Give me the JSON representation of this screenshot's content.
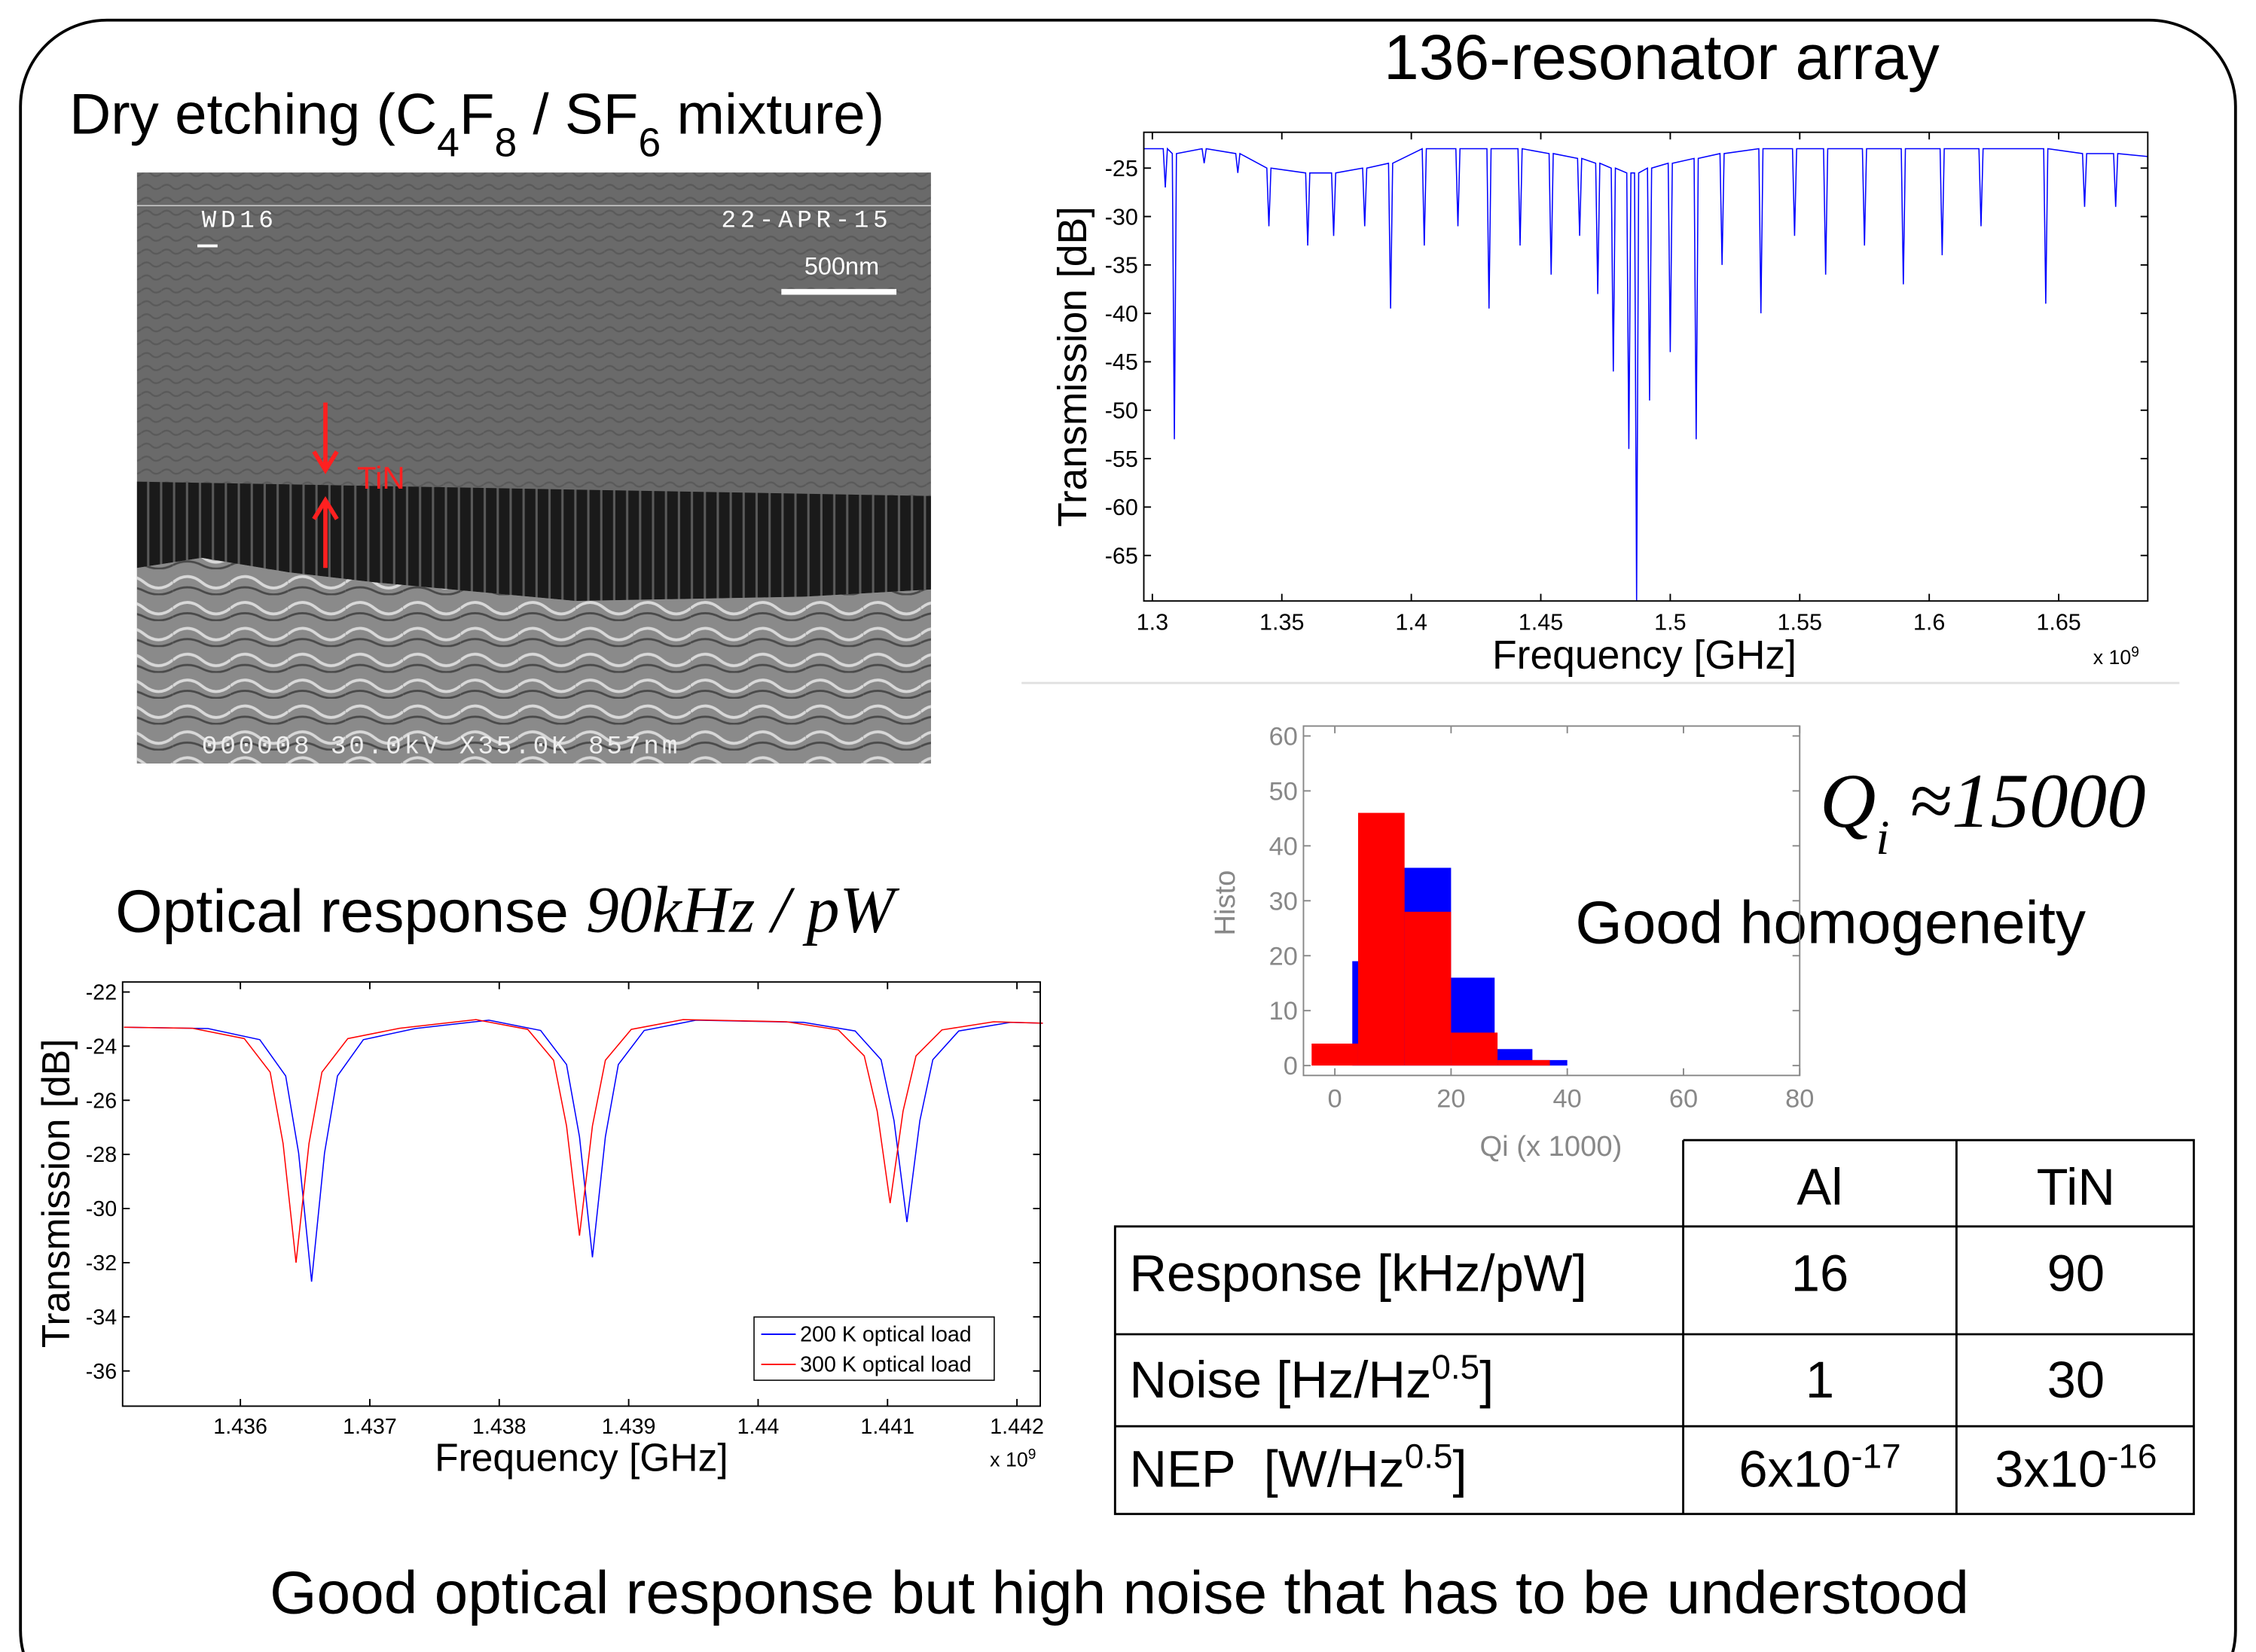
{
  "slide": {
    "sem_title": [
      "Dry etching (C",
      "4",
      "F",
      "8",
      " / SF",
      "6",
      " mixture)"
    ],
    "sem_labels": {
      "wd": "WD16",
      "date": "22-APR-15",
      "scale": "500nm",
      "layer": "TiN",
      "footer": "000008 30.0kV X35.0K 857nm"
    },
    "optical_title": "Optical response",
    "optical_formula": "90kHz / pW",
    "qi_formula": [
      "Q",
      "i",
      " ≈15000"
    ],
    "homogeneity": "Good homogeneity",
    "conclusion": "Good optical response but high noise that has to be understood"
  },
  "chart_data": [
    {
      "type": "line",
      "title": "136-resonator array",
      "x_label": "Frequency [GHz]",
      "y_label": "Transmission [dB]",
      "x_multiplier": [
        "x 10",
        "9"
      ],
      "x": [
        1.2967,
        1.3042,
        1.305,
        1.3058,
        1.3077,
        1.3085,
        1.3093,
        1.3192,
        1.32,
        1.3208,
        1.3322,
        1.333,
        1.3338,
        1.3442,
        1.345,
        1.3458,
        1.3592,
        1.36,
        1.3608,
        1.3692,
        1.37,
        1.3708,
        1.3812,
        1.382,
        1.3828,
        1.3912,
        1.392,
        1.3928,
        1.4042,
        1.405,
        1.4058,
        1.4172,
        1.418,
        1.4188,
        1.4292,
        1.43,
        1.4308,
        1.4412,
        1.442,
        1.4428,
        1.4532,
        1.454,
        1.4548,
        1.4642,
        1.465,
        1.4658,
        1.4712,
        1.472,
        1.4728,
        1.4772,
        1.478,
        1.4788,
        1.4832,
        1.484,
        1.4848,
        1.4862,
        1.487,
        1.4878,
        1.4912,
        1.492,
        1.4928,
        1.4992,
        1.5,
        1.5008,
        1.5092,
        1.51,
        1.5108,
        1.5192,
        1.52,
        1.5208,
        1.5342,
        1.535,
        1.5358,
        1.5472,
        1.548,
        1.5488,
        1.5592,
        1.56,
        1.5608,
        1.5742,
        1.575,
        1.5758,
        1.5892,
        1.59,
        1.5908,
        1.6042,
        1.605,
        1.6058,
        1.6192,
        1.62,
        1.6208,
        1.6442,
        1.645,
        1.6458,
        1.6592,
        1.66,
        1.6608,
        1.6712,
        1.672,
        1.6728,
        1.6844
      ],
      "series": [
        {
          "color": "#0000ff",
          "values": [
            -23,
            -23,
            -27,
            -23,
            -23.5,
            -53,
            -23.5,
            -23,
            -24.5,
            -23,
            -23.5,
            -25.5,
            -23.5,
            -25,
            -31,
            -25,
            -25.5,
            -33,
            -25.5,
            -25.5,
            -32,
            -25.5,
            -25,
            -31,
            -25,
            -24.5,
            -39.5,
            -24.5,
            -23,
            -33,
            -23,
            -23,
            -31,
            -23,
            -23,
            -39.5,
            -23,
            -23,
            -33,
            -23,
            -23.5,
            -36,
            -23.5,
            -24,
            -32,
            -24,
            -24.5,
            -38,
            -24.5,
            -25,
            -46,
            -25,
            -25.5,
            -54,
            -25.5,
            -25.5,
            -69.7,
            -25.5,
            -25,
            -49,
            -25,
            -24.5,
            -44,
            -24.5,
            -24,
            -53,
            -24,
            -23.5,
            -35,
            -23.5,
            -23,
            -40,
            -23,
            -23,
            -32,
            -23,
            -23,
            -36,
            -23,
            -23,
            -33,
            -23,
            -23,
            -37,
            -23,
            -23,
            -34,
            -23,
            -23,
            -31,
            -23,
            -23,
            -39,
            -23,
            -23.5,
            -29,
            -23.5,
            -23.5,
            -29,
            -23.5,
            -23.8
          ]
        }
      ],
      "xlim": [
        1.2967,
        1.6844
      ],
      "xticks": [
        1.3,
        1.35,
        1.4,
        1.45,
        1.5,
        1.55,
        1.6,
        1.65
      ],
      "ylim": [
        -69.7,
        -21.3
      ],
      "yticks": [
        -25,
        -30,
        -35,
        -40,
        -45,
        -50,
        -55,
        -60,
        -65
      ]
    },
    {
      "type": "line",
      "x_label": "Frequency [GHz]",
      "y_label": "Transmission [dB]",
      "x_multiplier": [
        "x 10",
        "9"
      ],
      "legend": "lower right",
      "series": [
        {
          "name": "200 K optical load",
          "color": "#0000ff",
          "x": [
            1.4351,
            1.43575,
            1.43615,
            1.43635,
            1.43645,
            1.43655,
            1.43665,
            1.43675,
            1.43695,
            1.43735,
            1.43792,
            1.43832,
            1.43852,
            1.43862,
            1.43872,
            1.43882,
            1.43892,
            1.43912,
            1.43952,
            1.44035,
            1.44075,
            1.44095,
            1.44105,
            1.44115,
            1.44125,
            1.44135,
            1.44155,
            1.44195,
            1.4422
          ],
          "values": [
            -23.3,
            -23.35,
            -23.76,
            -25.1,
            -27.95,
            -32.7,
            -27.95,
            -25.1,
            -23.76,
            -23.35,
            -23.04,
            -23.42,
            -24.68,
            -27.35,
            -31.8,
            -27.35,
            -24.68,
            -23.42,
            -23.04,
            -23.12,
            -23.44,
            -24.5,
            -26.75,
            -30.5,
            -26.75,
            -24.5,
            -23.44,
            -23.12,
            -23.15
          ]
        },
        {
          "name": "300 K optical load",
          "color": "#ff0000",
          "x": [
            1.4351,
            1.43563,
            1.43603,
            1.43623,
            1.43633,
            1.43643,
            1.43653,
            1.43663,
            1.43683,
            1.43723,
            1.43782,
            1.43822,
            1.43842,
            1.43852,
            1.43862,
            1.43872,
            1.43882,
            1.43902,
            1.43942,
            1.44022,
            1.44062,
            1.44082,
            1.44092,
            1.44102,
            1.44112,
            1.44122,
            1.44142,
            1.44182,
            1.4422
          ],
          "values": [
            -23.3,
            -23.34,
            -23.72,
            -24.96,
            -27.6,
            -32,
            -27.6,
            -24.96,
            -23.72,
            -23.34,
            -23.02,
            -23.38,
            -24.52,
            -26.95,
            -31,
            -26.95,
            -24.52,
            -23.38,
            -23.02,
            -23.1,
            -23.4,
            -24.36,
            -26.4,
            -29.8,
            -26.4,
            -24.36,
            -23.4,
            -23.1,
            -23.15
          ]
        }
      ],
      "xlim": [
        1.43509,
        1.44218
      ],
      "xticks": [
        1.436,
        1.437,
        1.438,
        1.439,
        1.44,
        1.441,
        1.442
      ],
      "ylim": [
        -37.3,
        -21.63
      ],
      "yticks": [
        -22,
        -24,
        -26,
        -28,
        -30,
        -32,
        -34,
        -36
      ]
    },
    {
      "type": "histogram",
      "x_label": "Qi (x 1000)",
      "y_label": "Histo",
      "series": [
        {
          "color": "#0000ff",
          "bins": [
            3,
            11.5,
            20,
            27.5,
            34,
            40
          ],
          "values": [
            19,
            36,
            16,
            3,
            1
          ]
        },
        {
          "color": "#ff0000",
          "bins": [
            -4,
            4,
            12,
            20,
            28,
            37
          ],
          "values": [
            4,
            46,
            28,
            6,
            1
          ]
        }
      ],
      "xlim": [
        -5.4,
        80
      ],
      "xticks": [
        0,
        20,
        40,
        60,
        80
      ],
      "ylim": [
        -1.8,
        61.8
      ],
      "yticks": [
        0,
        10,
        20,
        30,
        40,
        50,
        60
      ]
    }
  ],
  "table": {
    "header": [
      "Al",
      "TiN"
    ],
    "rows": [
      [
        [
          "Response [kHz/pW]"
        ],
        [
          "16"
        ],
        [
          "90"
        ]
      ],
      [
        [
          "Noise [Hz/Hz",
          "0.5",
          "]"
        ],
        [
          "1"
        ],
        [
          "30"
        ]
      ],
      [
        [
          "NEP  [W/Hz",
          "0.5",
          "]"
        ],
        [
          "6x10",
          "-17"
        ],
        [
          "3x10",
          "-16"
        ]
      ]
    ]
  }
}
